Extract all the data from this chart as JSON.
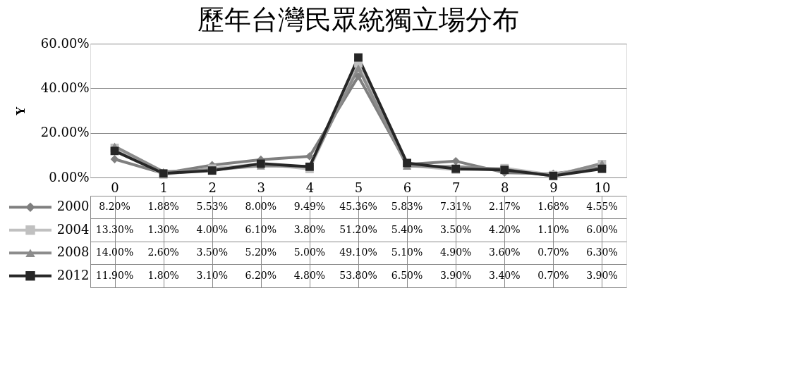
{
  "chart_data": {
    "type": "line",
    "title": "歷年台灣民眾統獨立場分布",
    "ylabel": "Y",
    "categories": [
      "0",
      "1",
      "2",
      "3",
      "4",
      "5",
      "6",
      "7",
      "8",
      "9",
      "10"
    ],
    "ylim": [
      0,
      60
    ],
    "yticks": [
      {
        "value": 0,
        "label": "0.00%"
      },
      {
        "value": 20,
        "label": "20.00%"
      },
      {
        "value": 40,
        "label": "40.00%"
      },
      {
        "value": 60,
        "label": "60.00%"
      }
    ],
    "grid": "y",
    "legend": "bottom",
    "line_style": "solid",
    "series": [
      {
        "name": "2000",
        "color": "#7f7f7f",
        "marker": "diamond",
        "values": [
          8.2,
          1.88,
          5.53,
          8.0,
          9.49,
          45.36,
          5.83,
          7.31,
          2.17,
          1.68,
          4.55
        ],
        "value_labels": [
          "8.20%",
          "1.88%",
          "5.53%",
          "8.00%",
          "9.49%",
          "45.36%",
          "5.83%",
          "7.31%",
          "2.17%",
          "1.68%",
          "4.55%"
        ]
      },
      {
        "name": "2004",
        "color": "#c0c0c0",
        "marker": "square",
        "values": [
          13.3,
          1.3,
          4.0,
          6.1,
          3.8,
          51.2,
          5.4,
          3.5,
          4.2,
          1.1,
          6.0
        ],
        "value_labels": [
          "13.30%",
          "1.30%",
          "4.00%",
          "6.10%",
          "3.80%",
          "51.20%",
          "5.40%",
          "3.50%",
          "4.20%",
          "1.10%",
          "6.00%"
        ]
      },
      {
        "name": "2008",
        "color": "#8c8c8c",
        "marker": "triangle",
        "values": [
          14.0,
          2.6,
          3.5,
          5.2,
          5.0,
          49.1,
          5.1,
          4.9,
          3.6,
          0.7,
          6.3
        ],
        "value_labels": [
          "14.00%",
          "2.60%",
          "3.50%",
          "5.20%",
          "5.00%",
          "49.10%",
          "5.10%",
          "4.90%",
          "3.60%",
          "0.70%",
          "6.30%"
        ]
      },
      {
        "name": "2012",
        "color": "#262626",
        "marker": "square",
        "values": [
          11.9,
          1.8,
          3.1,
          6.2,
          4.8,
          53.8,
          6.5,
          3.9,
          3.4,
          0.7,
          3.9
        ],
        "value_labels": [
          "11.90%",
          "1.80%",
          "3.10%",
          "6.20%",
          "4.80%",
          "53.80%",
          "6.50%",
          "3.90%",
          "3.40%",
          "0.70%",
          "3.90%"
        ]
      }
    ]
  }
}
